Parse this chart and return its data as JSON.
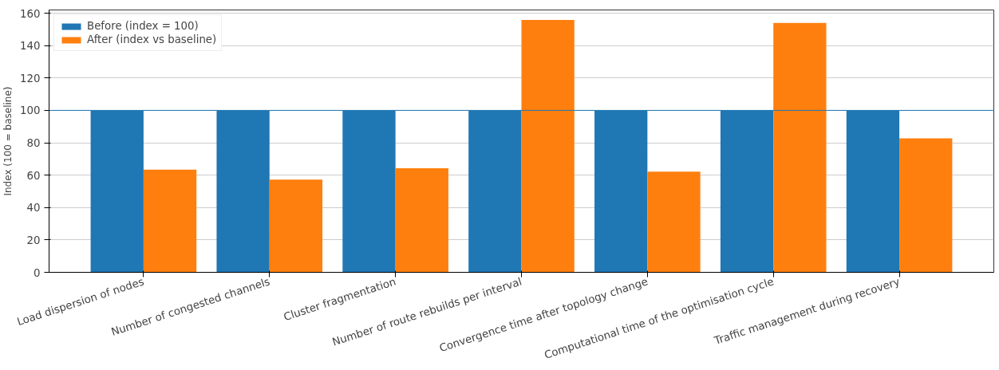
{
  "chart_data": {
    "type": "bar",
    "ylabel": "Index (100 = baseline)",
    "categories": [
      "Load dispersion of nodes",
      "Number of congested channels",
      "Cluster fragmentation",
      "Number of route rebuilds per interval",
      "Convergence time after topology change",
      "Computational time of the optimisation cycle",
      "Traffic management during recovery"
    ],
    "series": [
      {
        "name": "Before (index = 100)",
        "color": "#1f77b4",
        "values": [
          100,
          100,
          100,
          100,
          100,
          100,
          100
        ]
      },
      {
        "name": "After (index vs baseline)",
        "color": "#ff7f0e",
        "values": [
          63.4,
          57.2,
          64.2,
          155.8,
          62.2,
          154.0,
          82.7
        ]
      }
    ],
    "ylim": [
      0,
      162
    ],
    "yticks": [
      0,
      20,
      40,
      60,
      80,
      100,
      120,
      140,
      160
    ],
    "ref_lines": [
      {
        "axis": "y",
        "value": 100,
        "color": "#1f77b4"
      }
    ],
    "grid": "y",
    "legend": "top left"
  }
}
